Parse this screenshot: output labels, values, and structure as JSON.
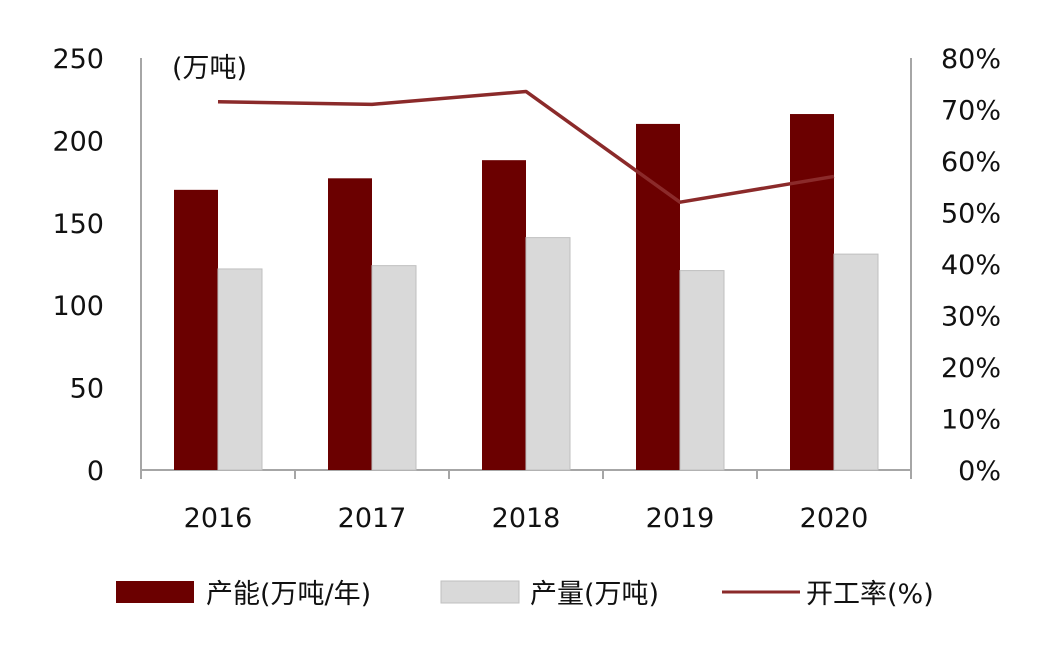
{
  "chart_data": {
    "type": "bar",
    "categories": [
      "2016",
      "2017",
      "2018",
      "2019",
      "2020"
    ],
    "unit_label": "(万吨)",
    "y_left": {
      "min": 0,
      "max": 250,
      "ticks": [
        "0",
        "50",
        "100",
        "150",
        "200",
        "250"
      ]
    },
    "y_right": {
      "min": 0,
      "max": 80,
      "ticks": [
        "0%",
        "10%",
        "20%",
        "30%",
        "40%",
        "50%",
        "60%",
        "70%",
        "80%"
      ]
    },
    "series": [
      {
        "name": "产能(万吨/年)",
        "type": "bar",
        "axis": "left",
        "color": "#6b0000",
        "values": [
          170,
          177,
          188,
          210,
          216
        ]
      },
      {
        "name": "产量(万吨)",
        "type": "bar",
        "axis": "left",
        "color": "#d9d9d9",
        "values": [
          122,
          124,
          141,
          121,
          131
        ]
      },
      {
        "name": "开工率(%)",
        "type": "line",
        "axis": "right",
        "color": "#8b2a2a",
        "values": [
          71.5,
          71,
          73.5,
          52,
          57
        ]
      }
    ],
    "axis_color": "#a6a6a6",
    "bar_edge_color": "#bfbfbf",
    "grid": false,
    "legend_position": "bottom"
  }
}
